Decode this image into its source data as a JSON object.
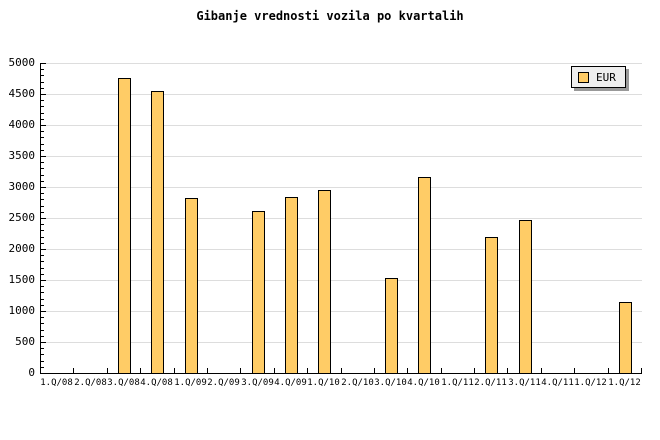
{
  "chart_data": {
    "type": "bar",
    "title": "Gibanje vrednosti vozila po kvartalih",
    "categories": [
      "1.Q/08",
      "2.Q/08",
      "3.Q/08",
      "4.Q/08",
      "1.Q/09",
      "2.Q/09",
      "3.Q/09",
      "4.Q/09",
      "1.Q/10",
      "2.Q/10",
      "3.Q/10",
      "4.Q/10",
      "1.Q/11",
      "2.Q/11",
      "3.Q/11",
      "4.Q/11",
      "1.Q/12",
      "1.Q/12"
    ],
    "series": [
      {
        "name": "EUR",
        "values": [
          null,
          null,
          4770,
          4560,
          2840,
          null,
          2630,
          2860,
          2960,
          null,
          1550,
          3170,
          null,
          2210,
          2490,
          null,
          null,
          1160
        ]
      }
    ],
    "xlabel": "",
    "ylabel": "",
    "ylim": [
      0,
      5000
    ],
    "ytick_step": 500,
    "ytick_minor_step": 100,
    "yticks": [
      0,
      500,
      1000,
      1500,
      2000,
      2500,
      3000,
      3500,
      4000,
      4500,
      5000
    ],
    "grid": true,
    "legend_position": "top-right",
    "colors": {
      "bar": "#FFCC66",
      "bar_border": "#000000",
      "grid": "#DDDDDD",
      "axis": "#000000",
      "legend_bg": "#EEEEEE",
      "legend_shadow": "#999999"
    }
  }
}
